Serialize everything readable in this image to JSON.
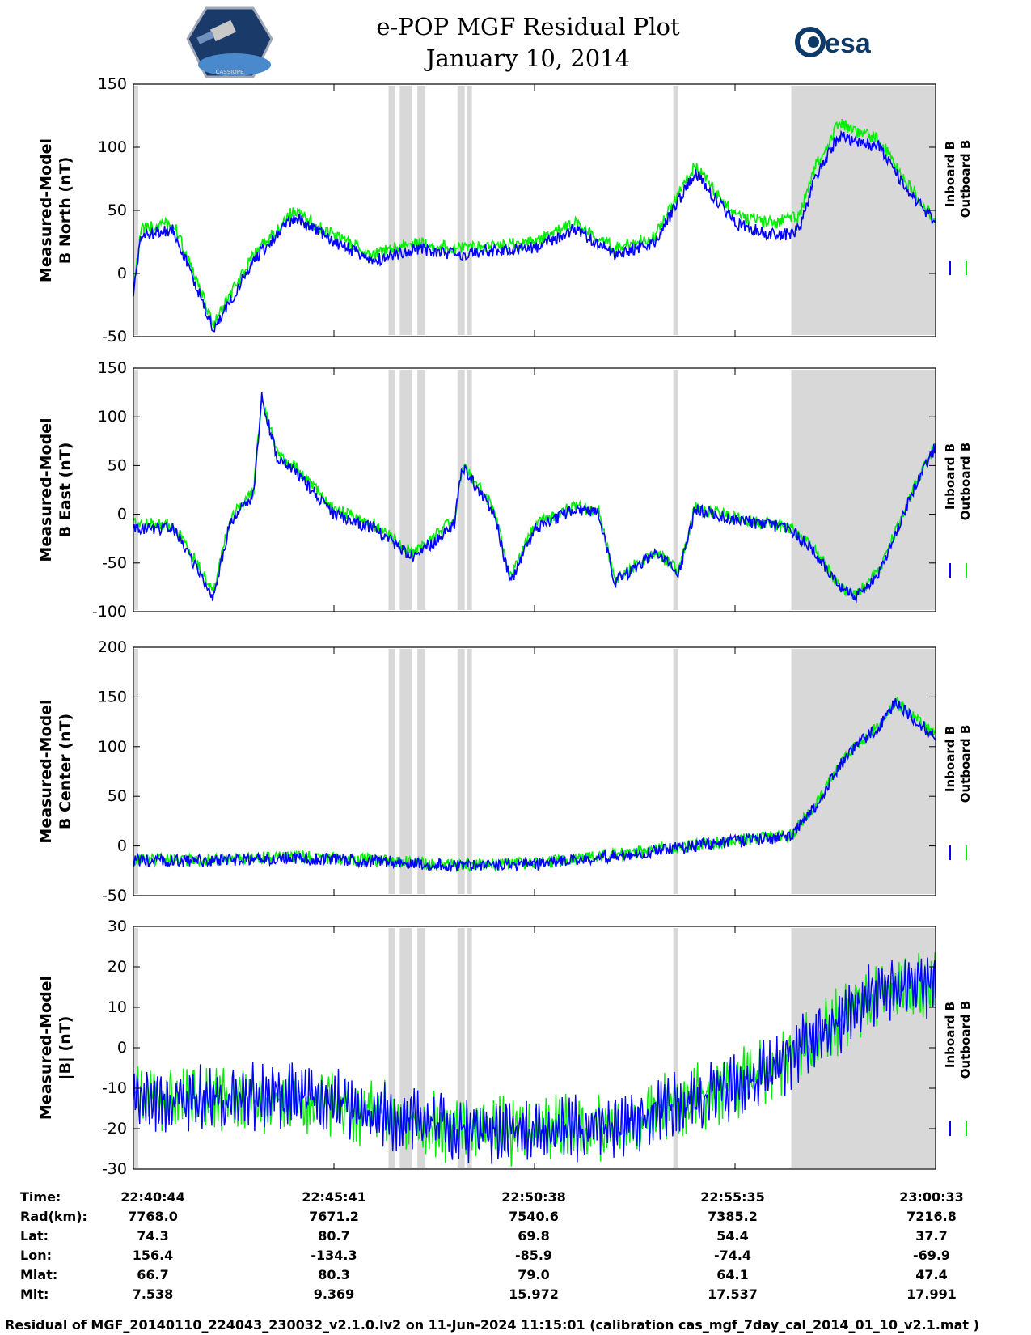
{
  "header": {
    "title_line1": "e-POP MGF Residual Plot",
    "title_line2": "January 10, 2014",
    "left_logo": "cassiope-satellite-logo",
    "left_logo_text": "CASSIOPE",
    "right_logo": "esa-logo",
    "right_logo_text": "esa"
  },
  "colors": {
    "inboard": "#0000ff",
    "outboard": "#00ee00",
    "shading": "#d8d8d8"
  },
  "legend": {
    "inboard": "Inboard B",
    "outboard": "Outboard B"
  },
  "chart_data": [
    {
      "type": "line",
      "panel": "b-north",
      "ylabel": [
        "Measured-Model",
        "B North (nT)"
      ],
      "ylim": [
        -50,
        150
      ],
      "yticks": [
        -50,
        0,
        50,
        100,
        150
      ],
      "series": [
        {
          "name": "Inboard B",
          "color": "#0000ff",
          "x": [
            0,
            0.01,
            0.05,
            0.1,
            0.15,
            0.2,
            0.25,
            0.3,
            0.35,
            0.4,
            0.45,
            0.5,
            0.55,
            0.6,
            0.65,
            0.7,
            0.75,
            0.8,
            0.82,
            0.83,
            0.85,
            0.88,
            0.9,
            0.93,
            0.96,
            1.0
          ],
          "y": [
            -15,
            30,
            35,
            -45,
            10,
            45,
            25,
            10,
            20,
            15,
            18,
            20,
            35,
            15,
            25,
            80,
            40,
            30,
            32,
            35,
            75,
            110,
            105,
            100,
            70,
            40
          ]
        },
        {
          "name": "Outboard B",
          "color": "#00ee00",
          "x": [
            0,
            0.01,
            0.05,
            0.1,
            0.15,
            0.2,
            0.25,
            0.3,
            0.35,
            0.4,
            0.45,
            0.5,
            0.55,
            0.6,
            0.65,
            0.7,
            0.75,
            0.8,
            0.82,
            0.83,
            0.85,
            0.88,
            0.9,
            0.93,
            0.96,
            1.0
          ],
          "y": [
            -10,
            35,
            40,
            -40,
            15,
            50,
            30,
            15,
            25,
            20,
            22,
            25,
            40,
            20,
            30,
            85,
            45,
            40,
            45,
            45,
            85,
            120,
            112,
            106,
            75,
            42
          ]
        }
      ]
    },
    {
      "type": "line",
      "panel": "b-east",
      "ylabel": [
        "Measured-Model",
        "B East (nT)"
      ],
      "ylim": [
        -100,
        150
      ],
      "yticks": [
        -100,
        -50,
        0,
        50,
        100,
        150
      ],
      "series": [
        {
          "name": "Inboard B",
          "color": "#0000ff",
          "x": [
            0,
            0.05,
            0.1,
            0.12,
            0.15,
            0.16,
            0.18,
            0.2,
            0.25,
            0.3,
            0.35,
            0.4,
            0.41,
            0.45,
            0.47,
            0.5,
            0.55,
            0.58,
            0.6,
            0.65,
            0.68,
            0.7,
            0.75,
            0.82,
            0.85,
            0.88,
            0.9,
            0.93,
            0.97,
            1.0
          ],
          "y": [
            -15,
            -15,
            -85,
            -10,
            20,
            120,
            55,
            45,
            0,
            -15,
            -45,
            -10,
            50,
            0,
            -70,
            -15,
            5,
            0,
            -70,
            -40,
            -60,
            5,
            -5,
            -15,
            -40,
            -75,
            -85,
            -60,
            20,
            70
          ]
        },
        {
          "name": "Outboard B",
          "color": "#00ee00",
          "x": [
            0,
            0.05,
            0.1,
            0.12,
            0.15,
            0.16,
            0.18,
            0.2,
            0.25,
            0.3,
            0.35,
            0.4,
            0.41,
            0.45,
            0.47,
            0.5,
            0.55,
            0.58,
            0.6,
            0.65,
            0.68,
            0.7,
            0.75,
            0.82,
            0.85,
            0.88,
            0.9,
            0.93,
            0.97,
            1.0
          ],
          "y": [
            -10,
            -10,
            -80,
            -5,
            25,
            120,
            60,
            50,
            5,
            -10,
            -40,
            -5,
            52,
            5,
            -65,
            -10,
            8,
            3,
            -67,
            -38,
            -58,
            7,
            -3,
            -14,
            -38,
            -73,
            -83,
            -58,
            22,
            72
          ]
        }
      ]
    },
    {
      "type": "line",
      "panel": "b-center",
      "ylabel": [
        "Measured-Model",
        "B Center (nT)"
      ],
      "ylim": [
        -50,
        200
      ],
      "yticks": [
        -50,
        0,
        50,
        100,
        150,
        200
      ],
      "series": [
        {
          "name": "Inboard B",
          "color": "#0000ff",
          "x": [
            0,
            0.1,
            0.2,
            0.3,
            0.4,
            0.5,
            0.55,
            0.6,
            0.65,
            0.7,
            0.75,
            0.8,
            0.82,
            0.85,
            0.88,
            0.9,
            0.93,
            0.95,
            0.97,
            1.0
          ],
          "y": [
            -15,
            -15,
            -12,
            -15,
            -20,
            -18,
            -15,
            -10,
            -5,
            0,
            5,
            8,
            10,
            40,
            80,
            100,
            120,
            145,
            130,
            110
          ]
        },
        {
          "name": "Outboard B",
          "color": "#00ee00",
          "x": [
            0,
            0.1,
            0.2,
            0.3,
            0.4,
            0.5,
            0.55,
            0.6,
            0.65,
            0.7,
            0.75,
            0.8,
            0.82,
            0.85,
            0.88,
            0.9,
            0.93,
            0.95,
            0.97,
            1.0
          ],
          "y": [
            -14,
            -14,
            -11,
            -14,
            -19,
            -17,
            -14,
            -9,
            -4,
            1,
            6,
            9,
            11,
            41,
            81,
            101,
            121,
            146,
            131,
            111
          ]
        }
      ]
    },
    {
      "type": "line",
      "panel": "b-magnitude",
      "ylabel": [
        "Measured-Model",
        "|B| (nT)"
      ],
      "ylim": [
        -30,
        30
      ],
      "yticks": [
        -30,
        -20,
        -10,
        0,
        10,
        20,
        30
      ],
      "series": [
        {
          "name": "Inboard B",
          "color": "#0000ff",
          "x": [
            0,
            0.1,
            0.2,
            0.3,
            0.4,
            0.5,
            0.6,
            0.7,
            0.8,
            0.85,
            0.9,
            0.95,
            1.0
          ],
          "y": [
            -12,
            -13,
            -12,
            -16,
            -20,
            -21,
            -19,
            -13,
            -5,
            2,
            10,
            15,
            16
          ]
        },
        {
          "name": "Outboard B",
          "color": "#00ee00",
          "x": [
            0,
            0.1,
            0.2,
            0.3,
            0.4,
            0.5,
            0.6,
            0.7,
            0.8,
            0.85,
            0.9,
            0.95,
            1.0
          ],
          "y": [
            -12,
            -13,
            -12,
            -16,
            -20,
            -21,
            -19,
            -13,
            -5,
            2,
            10,
            15,
            16
          ]
        }
      ]
    }
  ],
  "shading": {
    "bands": [
      [
        0.001,
        0.006
      ],
      [
        0.318,
        0.326
      ],
      [
        0.332,
        0.347
      ],
      [
        0.354,
        0.364
      ],
      [
        0.404,
        0.413
      ],
      [
        0.416,
        0.422
      ],
      [
        0.673,
        0.679
      ],
      [
        0.82,
        1.0
      ]
    ]
  },
  "xticks": [
    "22:40:44",
    "22:45:41",
    "22:50:38",
    "22:55:35",
    "23:00:33"
  ],
  "info_table": {
    "row_labels": [
      "Time:",
      "Rad(km):",
      "Lat:",
      "Lon:",
      "Mlat:",
      "Mlt:"
    ],
    "columns": [
      [
        "22:40:44",
        "7768.0",
        "74.3",
        "156.4",
        "66.7",
        "7.538"
      ],
      [
        "22:45:41",
        "7671.2",
        "80.7",
        "-134.3",
        "80.3",
        "9.369"
      ],
      [
        "22:50:38",
        "7540.6",
        "69.8",
        "-85.9",
        "79.0",
        "15.972"
      ],
      [
        "22:55:35",
        "7385.2",
        "54.4",
        "-74.4",
        "64.1",
        "17.537"
      ],
      [
        "23:00:33",
        "7216.8",
        "37.7",
        "-69.9",
        "47.4",
        "17.991"
      ]
    ]
  },
  "footer": {
    "text": "Residual of MGF_20140110_224043_230032_v2.1.0.lv2 on 11-Jun-2024 11:15:01 (calibration cas_mgf_7day_cal_2014_01_10_v2.1.mat )"
  }
}
